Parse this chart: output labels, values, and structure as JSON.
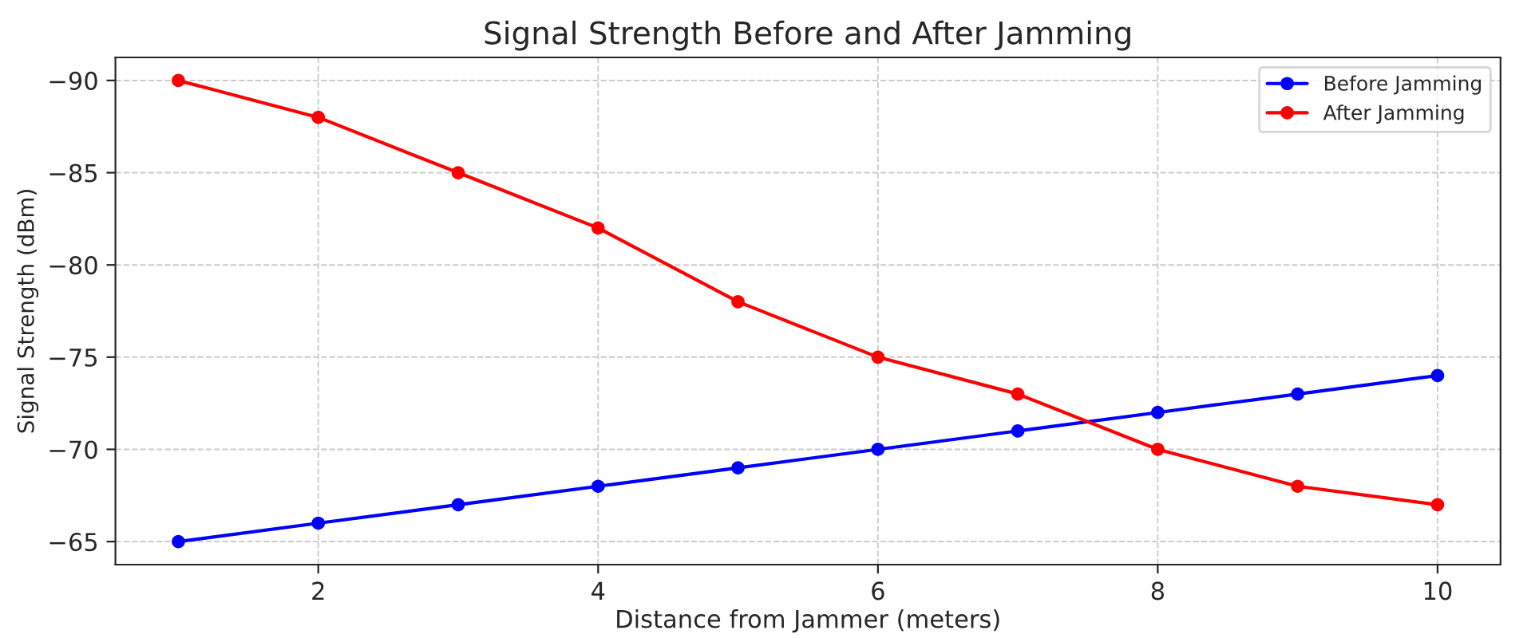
{
  "chart_data": {
    "type": "line",
    "title": "Signal Strength Before and After Jamming",
    "xlabel": "Distance from Jammer (meters)",
    "ylabel": "Signal Strength (dBm)",
    "x": [
      1,
      2,
      3,
      4,
      5,
      6,
      7,
      8,
      9,
      10
    ],
    "series": [
      {
        "name": "Before Jamming",
        "color": "#0000ff",
        "values": [
          -65,
          -66,
          -67,
          -68,
          -69,
          -70,
          -71,
          -72,
          -73,
          -74
        ]
      },
      {
        "name": "After Jamming",
        "color": "#ff0000",
        "values": [
          -90,
          -88,
          -85,
          -82,
          -78,
          -75,
          -73,
          -70,
          -68,
          -67
        ]
      }
    ],
    "xlim": [
      0.55,
      10.45
    ],
    "xticks": [
      2,
      4,
      6,
      8,
      10
    ],
    "ylim": [
      -63.75,
      -91.25
    ],
    "yticks": [
      {
        "value": -90,
        "label": "−90"
      },
      {
        "value": -85,
        "label": "−85"
      },
      {
        "value": -80,
        "label": "−80"
      },
      {
        "value": -75,
        "label": "−75"
      },
      {
        "value": -70,
        "label": "−70"
      },
      {
        "value": -65,
        "label": "−65"
      }
    ],
    "grid": true,
    "legend": "top right",
    "marker": "circle",
    "line_style": "solid"
  }
}
